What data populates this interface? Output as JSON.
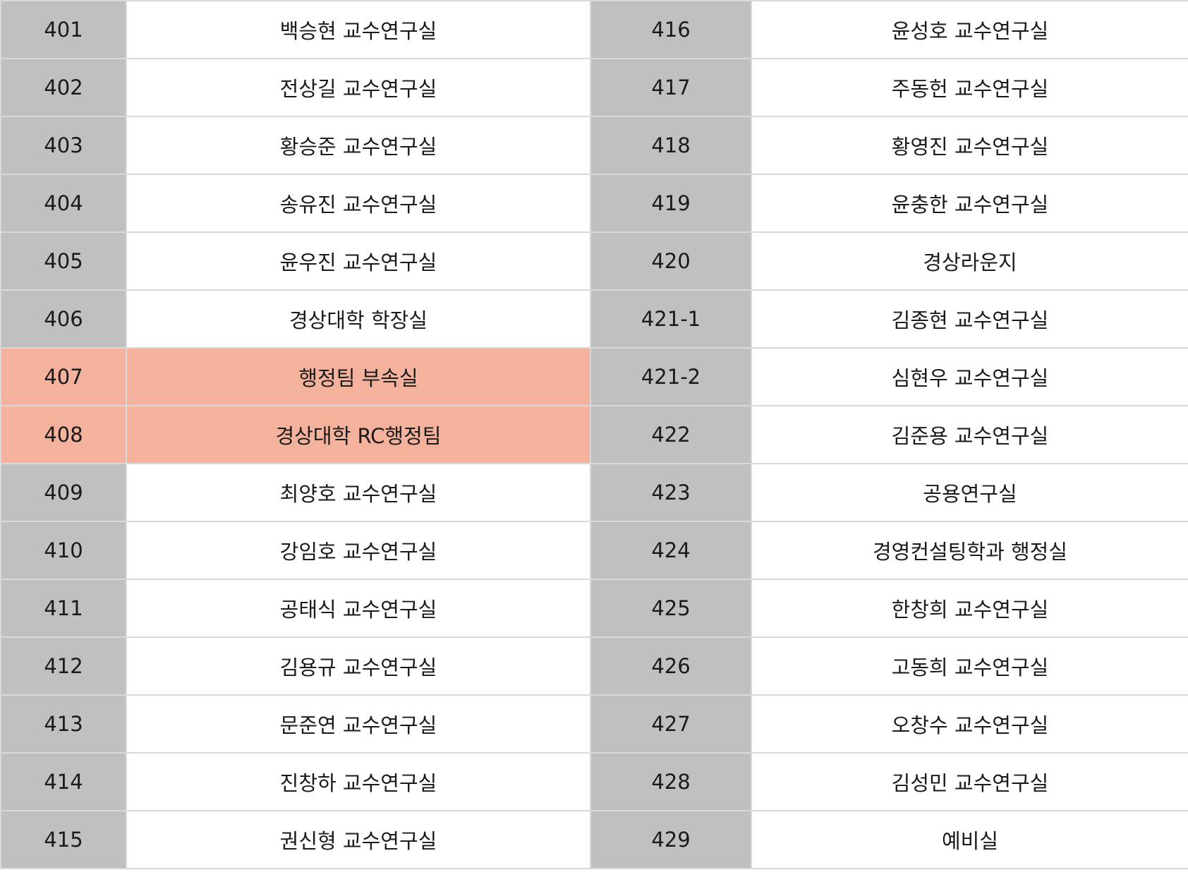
{
  "colors": {
    "number_cell": "#c0c0c0",
    "name_cell": "#ffffff",
    "highlight": "#f4b29c",
    "border": "#d9d9d9"
  },
  "rows": [
    {
      "left_num": "401",
      "left_name": "백승현 교수연구실",
      "right_num": "416",
      "right_name": "윤성호 교수연구실"
    },
    {
      "left_num": "402",
      "left_name": "전상길 교수연구실",
      "right_num": "417",
      "right_name": "주동헌 교수연구실"
    },
    {
      "left_num": "403",
      "left_name": "황승준 교수연구실",
      "right_num": "418",
      "right_name": "황영진 교수연구실"
    },
    {
      "left_num": "404",
      "left_name": "송유진 교수연구실",
      "right_num": "419",
      "right_name": "윤충한 교수연구실"
    },
    {
      "left_num": "405",
      "left_name": "윤우진 교수연구실",
      "right_num": "420",
      "right_name": "경상라운지"
    },
    {
      "left_num": "406",
      "left_name": "경상대학 학장실",
      "right_num": "421-1",
      "right_name": "김종현 교수연구실"
    },
    {
      "left_num": "407",
      "left_name": "행정팀 부속실",
      "right_num": "421-2",
      "right_name": "심현우 교수연구실"
    },
    {
      "left_num": "408",
      "left_name": "경상대학 RC행정팀",
      "right_num": "422",
      "right_name": "김준용 교수연구실"
    },
    {
      "left_num": "409",
      "left_name": "최양호 교수연구실",
      "right_num": "423",
      "right_name": "공용연구실"
    },
    {
      "left_num": "410",
      "left_name": "강임호 교수연구실",
      "right_num": "424",
      "right_name": "경영컨설팅학과 행정실"
    },
    {
      "left_num": "411",
      "left_name": "공태식 교수연구실",
      "right_num": "425",
      "right_name": "한창희 교수연구실"
    },
    {
      "left_num": "412",
      "left_name": "김용규 교수연구실",
      "right_num": "426",
      "right_name": "고동희 교수연구실"
    },
    {
      "left_num": "413",
      "left_name": "문준연 교수연구실",
      "right_num": "427",
      "right_name": "오창수 교수연구실"
    },
    {
      "left_num": "414",
      "left_name": "진창하 교수연구실",
      "right_num": "428",
      "right_name": "김성민 교수연구실"
    },
    {
      "left_num": "415",
      "left_name": "권신형 교수연구실",
      "right_num": "429",
      "right_name": "예비실"
    }
  ]
}
